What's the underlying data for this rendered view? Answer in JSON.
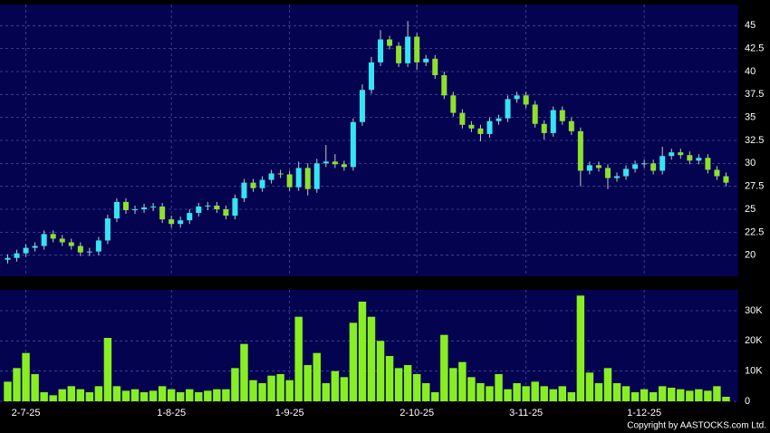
{
  "chart_data": [
    {
      "type": "candlestick",
      "categories": [
        null,
        null,
        "2-7-25",
        null,
        null,
        null,
        null,
        null,
        null,
        null,
        null,
        null,
        null,
        null,
        null,
        null,
        null,
        null,
        "1-8-25",
        null,
        null,
        null,
        null,
        null,
        null,
        null,
        null,
        null,
        null,
        null,
        null,
        "1-9-25",
        null,
        null,
        null,
        null,
        null,
        null,
        null,
        null,
        null,
        null,
        null,
        null,
        null,
        "2-10-25",
        null,
        null,
        null,
        null,
        null,
        null,
        null,
        null,
        null,
        null,
        null,
        "3-11-25",
        null,
        null,
        null,
        null,
        null,
        null,
        null,
        null,
        null,
        null,
        null,
        null,
        "1-12-25",
        null,
        null,
        null,
        null,
        null,
        null,
        null,
        null,
        null
      ],
      "open": [
        19.5,
        19.7,
        20.2,
        20.8,
        21.0,
        22.3,
        21.8,
        21.4,
        21.0,
        20.3,
        20.4,
        21.6,
        24.0,
        25.8,
        24.9,
        25.0,
        25.2,
        25.3,
        23.9,
        23.4,
        23.8,
        24.6,
        25.3,
        25.4,
        25.0,
        24.3,
        26.2,
        27.9,
        27.3,
        28.2,
        28.9,
        28.8,
        27.4,
        29.5,
        27.2,
        30.0,
        30.2,
        29.9,
        29.6,
        34.5,
        38.0,
        41.0,
        43.5,
        42.8,
        40.9,
        43.8,
        41.0,
        41.4,
        39.6,
        37.4,
        35.5,
        34.2,
        33.8,
        33.2,
        34.6,
        34.9,
        37.0,
        37.4,
        36.4,
        34.3,
        33.3,
        35.8,
        34.6,
        33.5,
        29.2,
        29.8,
        29.5,
        28.4,
        28.6,
        29.4,
        29.9,
        30.0,
        29.2,
        30.8,
        31.2,
        30.9,
        30.3,
        30.6,
        29.3,
        28.6
      ],
      "high": [
        20.1,
        20.6,
        21.2,
        21.4,
        22.7,
        22.7,
        22.2,
        21.8,
        21.4,
        20.8,
        22.0,
        24.4,
        26.2,
        26.2,
        25.4,
        25.6,
        25.7,
        25.7,
        24.3,
        24.2,
        25.0,
        25.7,
        25.8,
        25.8,
        25.4,
        26.6,
        28.3,
        28.3,
        28.6,
        29.3,
        29.3,
        29.2,
        30.2,
        30.0,
        30.5,
        32.0,
        31.0,
        30.3,
        34.9,
        38.6,
        41.6,
        44.5,
        43.9,
        43.2,
        45.5,
        44.2,
        41.8,
        41.8,
        40.0,
        37.8,
        35.9,
        34.6,
        34.2,
        35.0,
        35.3,
        37.4,
        37.8,
        37.8,
        36.8,
        34.7,
        36.2,
        36.2,
        35.0,
        33.9,
        30.2,
        30.2,
        29.9,
        29.0,
        29.8,
        30.3,
        30.4,
        30.4,
        31.8,
        31.6,
        31.6,
        31.3,
        31.0,
        31.0,
        29.7,
        29.0
      ],
      "low": [
        19.1,
        19.3,
        19.8,
        20.4,
        20.6,
        21.4,
        21.0,
        20.6,
        19.9,
        19.9,
        20.0,
        21.2,
        23.6,
        24.5,
        24.5,
        24.6,
        24.8,
        23.5,
        23.0,
        23.0,
        23.4,
        24.2,
        24.9,
        24.6,
        23.9,
        23.9,
        25.8,
        26.9,
        26.9,
        27.8,
        28.4,
        27.0,
        27.0,
        26.5,
        26.8,
        29.6,
        29.5,
        29.2,
        29.2,
        34.1,
        37.6,
        40.6,
        42.4,
        40.5,
        40.5,
        40.2,
        40.6,
        39.2,
        37.0,
        35.1,
        33.8,
        33.4,
        32.4,
        32.8,
        34.2,
        34.5,
        36.6,
        36.0,
        33.9,
        32.6,
        32.9,
        34.2,
        33.1,
        27.5,
        28.8,
        29.1,
        27.2,
        28.0,
        28.2,
        29.0,
        29.5,
        28.8,
        28.8,
        30.4,
        30.5,
        29.9,
        29.9,
        28.9,
        28.2,
        27.5
      ],
      "close": [
        19.7,
        20.2,
        20.8,
        21.0,
        22.3,
        21.8,
        21.4,
        21.0,
        20.3,
        20.4,
        21.6,
        24.0,
        25.8,
        24.9,
        25.0,
        25.2,
        25.3,
        23.9,
        23.4,
        23.8,
        24.6,
        25.3,
        25.4,
        25.0,
        24.3,
        26.2,
        27.9,
        27.3,
        28.2,
        28.9,
        28.8,
        27.4,
        29.5,
        27.2,
        30.0,
        30.2,
        29.9,
        29.6,
        34.5,
        38.0,
        41.0,
        43.5,
        42.8,
        40.9,
        43.8,
        41.0,
        41.4,
        39.6,
        37.4,
        35.5,
        34.2,
        33.8,
        33.2,
        34.6,
        34.9,
        37.0,
        37.4,
        36.4,
        34.3,
        33.3,
        35.8,
        34.6,
        33.5,
        29.2,
        29.8,
        29.5,
        28.4,
        28.6,
        29.4,
        29.9,
        30.0,
        29.2,
        30.8,
        31.2,
        30.9,
        30.3,
        30.6,
        29.3,
        28.6,
        27.9
      ],
      "up_color": "#35e4f2",
      "down_color": "#8ee02c",
      "ylim": [
        17.7,
        47.3
      ],
      "yticks": [
        20,
        22.5,
        25,
        27.5,
        30,
        32.5,
        35,
        37.5,
        40,
        42.5,
        45
      ],
      "grid": true
    },
    {
      "type": "bar",
      "values": [
        6500,
        11000,
        16000,
        9000,
        3000,
        2000,
        4000,
        5000,
        4000,
        3000,
        5000,
        21000,
        5000,
        3500,
        4000,
        3000,
        3500,
        5000,
        4000,
        3000,
        4000,
        3000,
        3500,
        4000,
        4000,
        11000,
        19000,
        7000,
        6000,
        8500,
        9000,
        7000,
        28000,
        12000,
        16000,
        6000,
        10000,
        8000,
        26000,
        33000,
        28000,
        20000,
        15000,
        11000,
        12000,
        9000,
        6000,
        3000,
        22000,
        11000,
        13000,
        8000,
        6000,
        5000,
        9000,
        4000,
        6000,
        5000,
        6500,
        5000,
        4000,
        5000,
        3000,
        35000,
        9500,
        6000,
        11000,
        6000,
        5000,
        3000,
        4000,
        3000,
        5000,
        4500,
        4000,
        3500,
        4000,
        3500,
        5000,
        1500
      ],
      "color": "#88ee22",
      "ylim": [
        0,
        36900
      ],
      "yticks": [
        0,
        {
          "value": 10000,
          "label": "10K"
        },
        {
          "value": 20000,
          "label": "20K"
        },
        {
          "value": 30000,
          "label": "30K"
        }
      ],
      "grid": true,
      "annotation": "Copyright by AASTOCKS.com Ltd."
    }
  ]
}
